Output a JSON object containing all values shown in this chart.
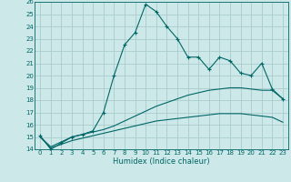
{
  "xlabel": "Humidex (Indice chaleur)",
  "bg_color": "#cce8e8",
  "grid_color": "#aacccc",
  "line_color": "#006666",
  "xlim": [
    -0.5,
    23.5
  ],
  "ylim": [
    14,
    26
  ],
  "xticks": [
    0,
    1,
    2,
    3,
    4,
    5,
    6,
    7,
    8,
    9,
    10,
    11,
    12,
    13,
    14,
    15,
    16,
    17,
    18,
    19,
    20,
    21,
    22,
    23
  ],
  "yticks": [
    14,
    15,
    16,
    17,
    18,
    19,
    20,
    21,
    22,
    23,
    24,
    25,
    26
  ],
  "line1_x": [
    0,
    1,
    2,
    3,
    4,
    5,
    6,
    7,
    8,
    9,
    10,
    11,
    12,
    13,
    14,
    15,
    16,
    17,
    18,
    19,
    20,
    21,
    22,
    23
  ],
  "line1_y": [
    15.1,
    14.0,
    14.5,
    15.0,
    15.2,
    15.5,
    17.0,
    20.0,
    22.5,
    23.5,
    25.8,
    25.2,
    24.0,
    23.0,
    21.5,
    21.5,
    20.5,
    21.5,
    21.2,
    20.2,
    20.0,
    21.0,
    18.9,
    18.1
  ],
  "line2_x": [
    0,
    1,
    2,
    3,
    4,
    5,
    6,
    7,
    8,
    9,
    10,
    11,
    12,
    13,
    14,
    15,
    16,
    17,
    18,
    19,
    20,
    21,
    22,
    23
  ],
  "line2_y": [
    15.0,
    14.2,
    14.6,
    15.0,
    15.2,
    15.4,
    15.6,
    15.9,
    16.3,
    16.7,
    17.1,
    17.5,
    17.8,
    18.1,
    18.4,
    18.6,
    18.8,
    18.9,
    19.0,
    19.0,
    18.9,
    18.8,
    18.8,
    18.1
  ],
  "line3_x": [
    0,
    1,
    2,
    3,
    4,
    5,
    6,
    7,
    8,
    9,
    10,
    11,
    12,
    13,
    14,
    15,
    16,
    17,
    18,
    19,
    20,
    21,
    22,
    23
  ],
  "line3_y": [
    15.0,
    14.1,
    14.4,
    14.7,
    14.9,
    15.1,
    15.3,
    15.5,
    15.7,
    15.9,
    16.1,
    16.3,
    16.4,
    16.5,
    16.6,
    16.7,
    16.8,
    16.9,
    16.9,
    16.9,
    16.8,
    16.7,
    16.6,
    16.2
  ]
}
